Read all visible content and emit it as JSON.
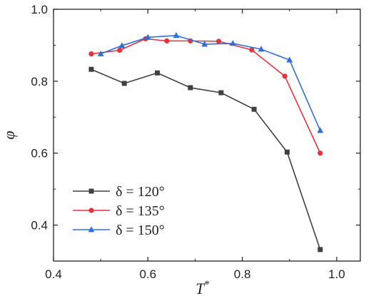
{
  "chart_data": {
    "type": "line",
    "title": "",
    "xlabel": "T",
    "xlabel_superscript": "*",
    "ylabel": "φ",
    "xlim": [
      0.4,
      1.05
    ],
    "ylim": [
      0.3,
      1.0
    ],
    "xticks": [
      "0.4",
      "0.6",
      "0.8",
      "1.0"
    ],
    "yticks": [
      "0.4",
      "0.6",
      "0.8",
      "1.0"
    ],
    "xtick_values": [
      0.4,
      0.6,
      0.8,
      1.0
    ],
    "ytick_values": [
      0.4,
      0.6,
      0.8,
      1.0
    ],
    "grid": false,
    "legend_position": "bottom-left",
    "series": [
      {
        "name": "δ = 120°",
        "color": "#404040",
        "marker": "square",
        "points": [
          [
            0.48,
            0.833
          ],
          [
            0.55,
            0.794
          ],
          [
            0.62,
            0.823
          ],
          [
            0.69,
            0.782
          ],
          [
            0.755,
            0.768
          ],
          [
            0.825,
            0.722
          ],
          [
            0.895,
            0.603
          ],
          [
            0.965,
            0.332
          ]
        ]
      },
      {
        "name": "δ = 135°",
        "color": "#e8323c",
        "marker": "circle",
        "points": [
          [
            0.48,
            0.876
          ],
          [
            0.54,
            0.886
          ],
          [
            0.595,
            0.918
          ],
          [
            0.64,
            0.912
          ],
          [
            0.69,
            0.912
          ],
          [
            0.75,
            0.911
          ],
          [
            0.82,
            0.887
          ],
          [
            0.89,
            0.814
          ],
          [
            0.965,
            0.6
          ]
        ]
      },
      {
        "name": "δ = 150°",
        "color": "#2f6fd6",
        "marker": "triangle",
        "points": [
          [
            0.5,
            0.876
          ],
          [
            0.545,
            0.899
          ],
          [
            0.6,
            0.922
          ],
          [
            0.66,
            0.927
          ],
          [
            0.72,
            0.903
          ],
          [
            0.78,
            0.905
          ],
          [
            0.84,
            0.889
          ],
          [
            0.9,
            0.859
          ],
          [
            0.965,
            0.663
          ]
        ]
      }
    ]
  }
}
